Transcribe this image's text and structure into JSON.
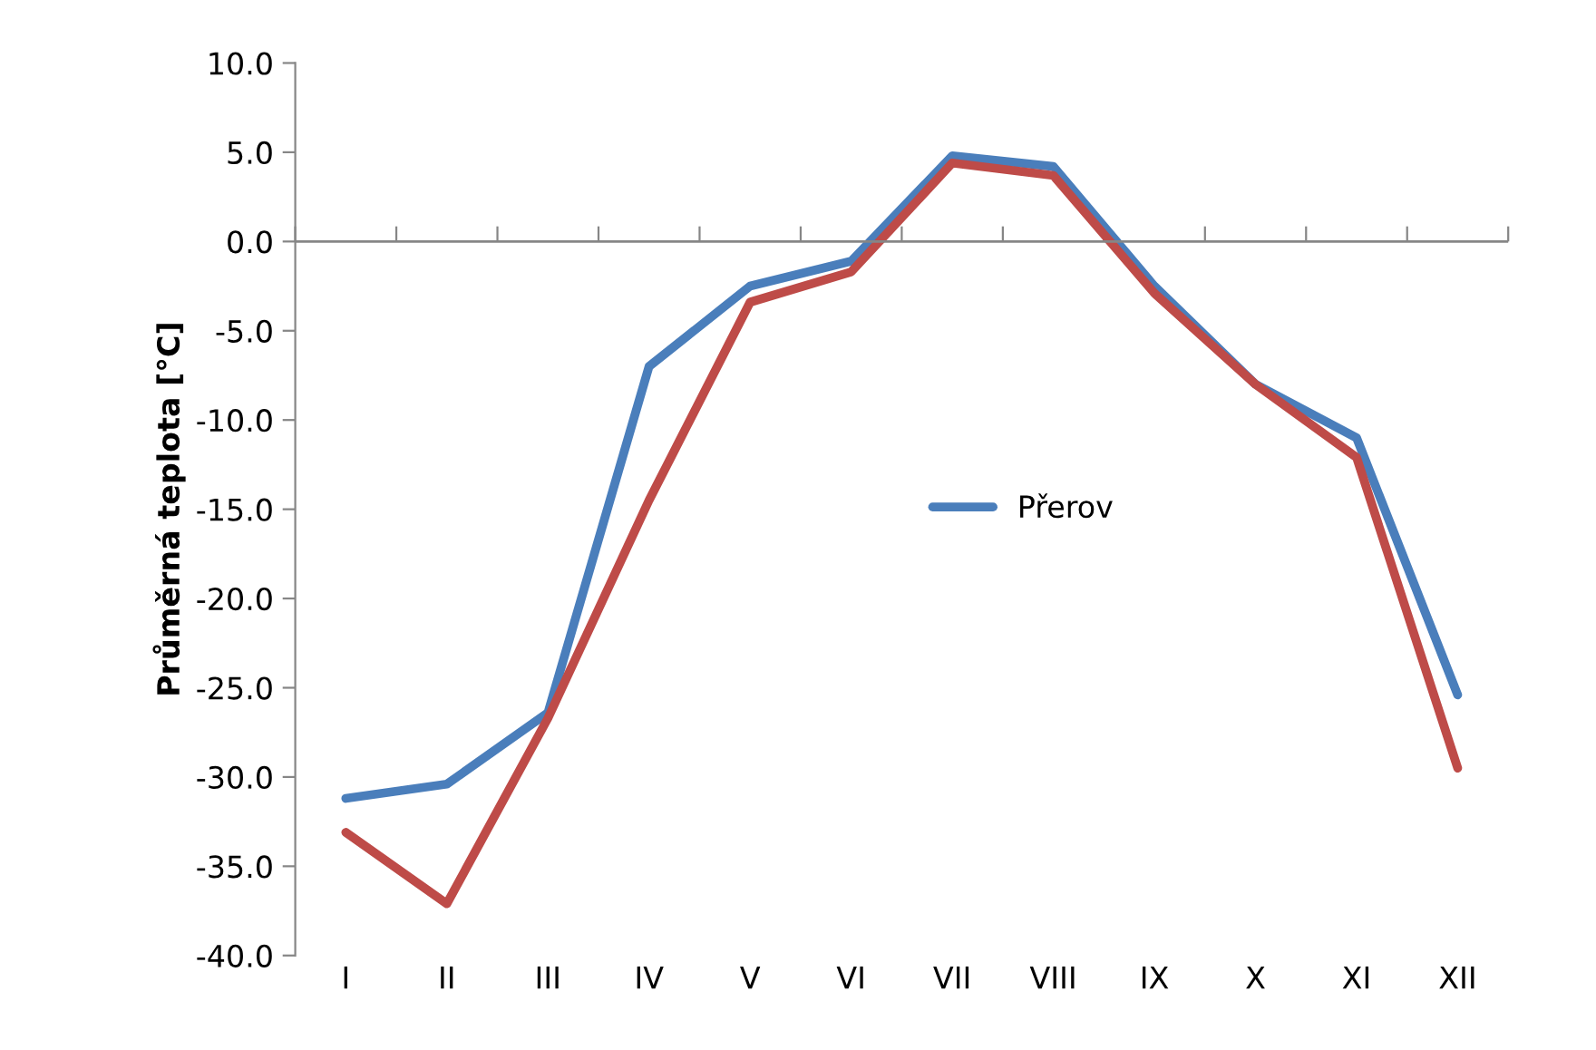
{
  "chart_data": {
    "type": "line",
    "ylabel": "Průměrná teplota [°C]",
    "categories": [
      "I",
      "II",
      "III",
      "IV",
      "V",
      "VI",
      "VII",
      "VIII",
      "IX",
      "X",
      "XI",
      "XII"
    ],
    "series": [
      {
        "name": "Přerov",
        "color": "#4a7ebb",
        "values": [
          -31.2,
          -30.4,
          -26.4,
          -7.0,
          -2.5,
          -1.1,
          4.8,
          4.2,
          -2.5,
          -8.0,
          -11.0,
          -25.4
        ]
      },
      {
        "color": "#be4b48",
        "values": [
          -33.1,
          -37.1,
          -26.7,
          -14.5,
          -3.4,
          -1.7,
          4.4,
          3.7,
          -2.9,
          -8.0,
          -12.1,
          -29.5
        ]
      }
    ],
    "ylim": [
      -40,
      10
    ],
    "yticks": [
      {
        "value": 10,
        "label": "10.0"
      },
      {
        "value": 5,
        "label": "5.0"
      },
      {
        "value": 0,
        "label": "0.0"
      },
      {
        "value": -5,
        "label": "-5.0"
      },
      {
        "value": -10,
        "label": "-10.0"
      },
      {
        "value": -15,
        "label": "-15.0"
      },
      {
        "value": -20,
        "label": "-20.0"
      },
      {
        "value": -25,
        "label": "-25.0"
      },
      {
        "value": -30,
        "label": "-30.0"
      },
      {
        "value": -35,
        "label": "-35.0"
      },
      {
        "value": -40,
        "label": "-40.0"
      }
    ],
    "ref_lines": [
      {
        "axis": "y",
        "value": 0,
        "color": "#868686"
      }
    ],
    "grid": false,
    "legend": "center",
    "marker": "none",
    "line_style": "solid"
  }
}
